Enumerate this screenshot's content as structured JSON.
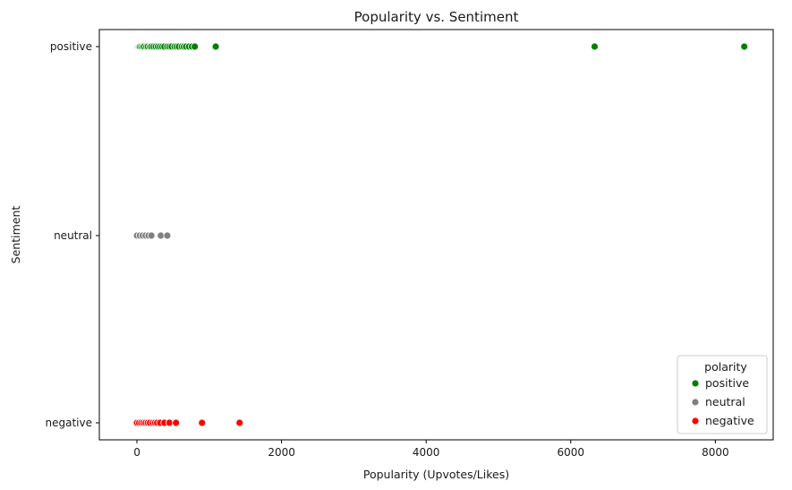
{
  "chart_data": {
    "type": "scatter",
    "title": "Popularity vs. Sentiment",
    "xlabel": "Popularity (Upvotes/Likes)",
    "ylabel": "Sentiment",
    "xlim": [
      -520,
      8800
    ],
    "x_ticks": [
      0,
      2000,
      4000,
      6000,
      8000
    ],
    "y_categories": [
      "positive",
      "neutral",
      "negative"
    ],
    "grid": false,
    "legend": {
      "title": "polarity",
      "placement": "lower-right"
    },
    "series": [
      {
        "name": "positive",
        "color": "#008000",
        "x": [
          0,
          10,
          20,
          30,
          40,
          60,
          80,
          100,
          130,
          150,
          180,
          200,
          230,
          260,
          290,
          320,
          350,
          380,
          420,
          450,
          480,
          520,
          550,
          580,
          620,
          650,
          680,
          720,
          760,
          800,
          1090,
          6330,
          8400
        ]
      },
      {
        "name": "neutral",
        "color": "#808080",
        "x": [
          0,
          40,
          80,
          120,
          160,
          200,
          330,
          420
        ]
      },
      {
        "name": "negative",
        "color": "#ff0000",
        "x": [
          0,
          30,
          60,
          90,
          120,
          150,
          180,
          220,
          250,
          280,
          320,
          380,
          450,
          540,
          900,
          1420
        ]
      }
    ]
  }
}
